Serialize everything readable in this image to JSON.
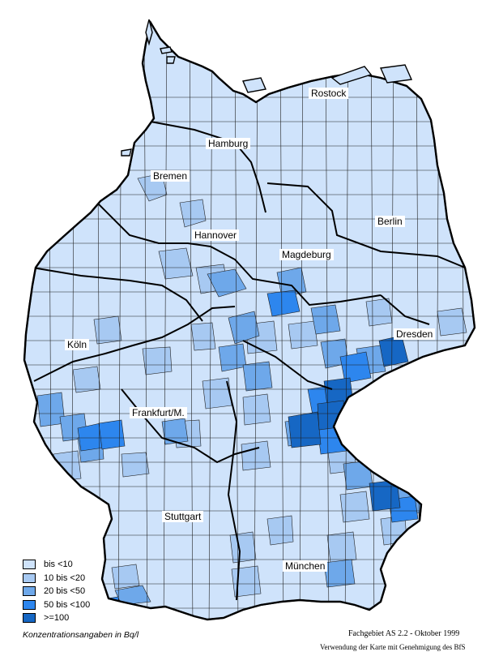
{
  "colors": {
    "background": "#ffffff",
    "border": "#000000",
    "district_line": "#1f1f1f"
  },
  "cities": [
    {
      "name": "Rostock"
    },
    {
      "name": "Hamburg"
    },
    {
      "name": "Bremen"
    },
    {
      "name": "Berlin"
    },
    {
      "name": "Hannover"
    },
    {
      "name": "Magdeburg"
    },
    {
      "name": "Dresden"
    },
    {
      "name": "Köln"
    },
    {
      "name": "Frankfurt/M."
    },
    {
      "name": "Stuttgart"
    },
    {
      "name": "München"
    }
  ],
  "legend": {
    "classes": [
      {
        "label": "bis <10",
        "color": "#cfe3fb"
      },
      {
        "label": "10 bis <20",
        "color": "#a7c9f2"
      },
      {
        "label": "20 bis <50",
        "color": "#6ea8ea"
      },
      {
        "label": "50 bis <100",
        "color": "#2d86ee"
      },
      {
        "label": ">=100",
        "color": "#1667c4"
      }
    ]
  },
  "footer": {
    "units": "Konzentrationsangaben in Bq/l",
    "credit": "Fachgebiet AS 2.2 - Oktober 1999",
    "permission": "Verwendung der Karte mit Genehmigung des BfS"
  }
}
